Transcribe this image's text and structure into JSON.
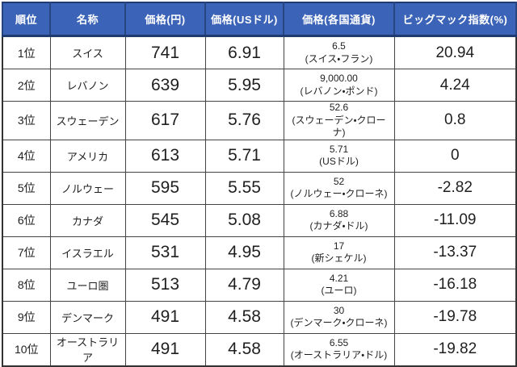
{
  "chart_data": {
    "type": "table",
    "columns": [
      "順位",
      "名称",
      "価格(円)",
      "価格(USドル)",
      "価格(各国通貨)",
      "ビッグマック指数(%)"
    ],
    "rows": [
      [
        "1位",
        "スイス",
        "741",
        "6.91",
        "6.5",
        "(スイス・フラン)",
        "20.94"
      ],
      [
        "2位",
        "レバノン",
        "639",
        "5.95",
        "9,000.00",
        "(レバノン・ポンド)",
        "4.24"
      ],
      [
        "3位",
        "スウェーデン",
        "617",
        "5.76",
        "52.6",
        "(スウェーデン・クローナ)",
        "0.8"
      ],
      [
        "4位",
        "アメリカ",
        "613",
        "5.71",
        "5.71",
        "(USドル)",
        "0"
      ],
      [
        "5位",
        "ノルウェー",
        "595",
        "5.55",
        "52",
        "(ノルウェー・クローネ)",
        "-2.82"
      ],
      [
        "6位",
        "カナダ",
        "545",
        "5.08",
        "6.88",
        "(カナダ・ドル)",
        "-11.09"
      ],
      [
        "7位",
        "イスラエル",
        "531",
        "4.95",
        "17",
        "(新シェケル)",
        "-13.37"
      ],
      [
        "8位",
        "ユーロ圏",
        "513",
        "4.79",
        "4.21",
        "(ユーロ)",
        "-16.18"
      ],
      [
        "9位",
        "デンマーク",
        "491",
        "4.58",
        "30",
        "(デンマーク・クローネ)",
        "-19.78"
      ],
      [
        "10位",
        "オーストラリア",
        "491",
        "4.58",
        "6.55",
        "(オーストラリア・ドル)",
        "-19.82"
      ]
    ]
  },
  "colors": {
    "header_bg": "#3b63b8",
    "header_text": "#ffffff",
    "header_divider": "#27457f",
    "grid": "#454545",
    "body_text": "#1f1f1f"
  }
}
